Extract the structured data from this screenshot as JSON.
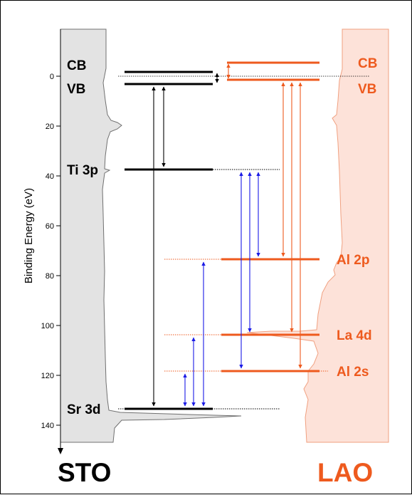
{
  "y_axis": {
    "label": "Binding Energy (eV)",
    "ticks": [
      0,
      20,
      40,
      60,
      80,
      100,
      120,
      140
    ],
    "range": [
      -18,
      150
    ]
  },
  "colors": {
    "sto": "#000000",
    "lao": "#ee5a1e",
    "transition": "#1a1ae6",
    "sto_fill": "#e3e3e3",
    "lao_fill": "#fde2d9"
  },
  "sto": {
    "name": "STO",
    "levels": [
      {
        "label": "CB",
        "energy": -2
      },
      {
        "label": "VB",
        "energy": 3.2
      },
      {
        "label": "Ti 3p",
        "energy": 37.5
      },
      {
        "label": "Sr 3d",
        "energy": 133.5
      }
    ]
  },
  "lao": {
    "name": "LAO",
    "levels": [
      {
        "label": "CB",
        "energy": -5.6
      },
      {
        "label": "VB",
        "energy": 1.4
      },
      {
        "label": "Al 2p",
        "energy": 73.5
      },
      {
        "label": "La 4d",
        "energy": 104
      },
      {
        "label": "Al 2s",
        "energy": 118.5
      }
    ]
  }
}
